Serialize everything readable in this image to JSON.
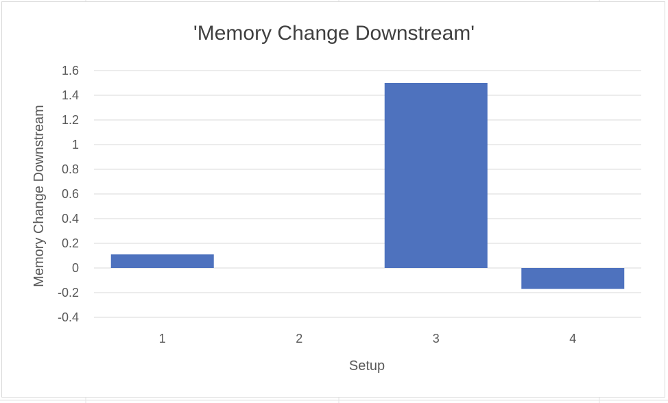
{
  "chart_data": {
    "type": "bar",
    "title": "'Memory Change Downstream'",
    "xlabel": "Setup",
    "ylabel": "Memory Change Downstream",
    "categories": [
      "1",
      "2",
      "3",
      "4"
    ],
    "values": [
      0.11,
      0.0,
      1.5,
      -0.17
    ],
    "ylim": [
      -0.4,
      1.6
    ],
    "yticks": [
      "-0.4",
      "-0.2",
      "0",
      "0.2",
      "0.4",
      "0.6",
      "0.8",
      "1",
      "1.2",
      "1.4",
      "1.6"
    ],
    "grid": true,
    "legend": "none",
    "colors": {
      "bar": "#4e72be",
      "grid": "#d9d9d9",
      "text": "#595959",
      "title": "#404040"
    }
  }
}
